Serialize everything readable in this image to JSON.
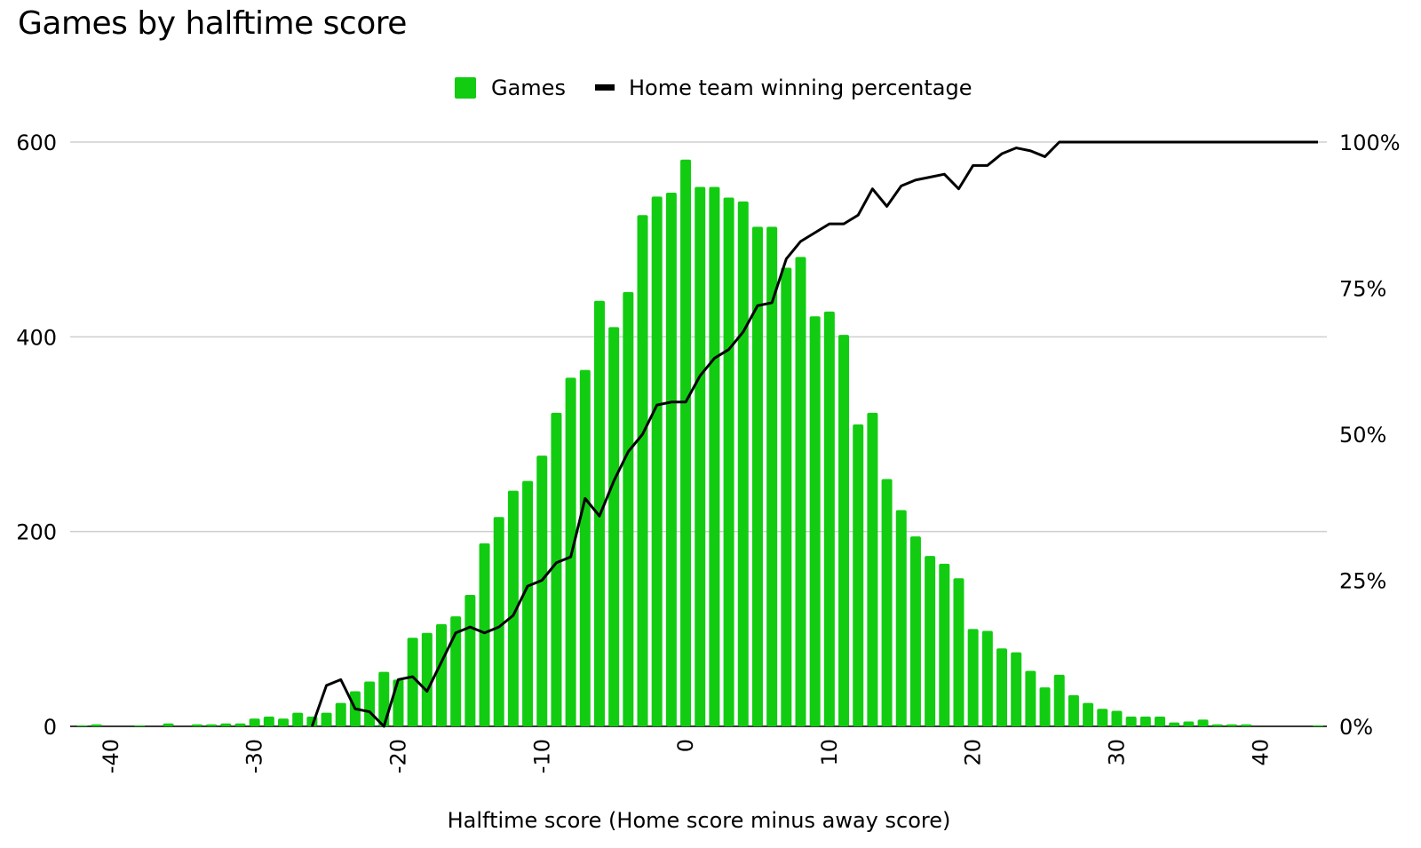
{
  "colors": {
    "bar": "#12cc12",
    "line": "#000000",
    "grid": "#cfcfcf"
  },
  "chart_data": {
    "type": "bar",
    "title": "Games by halftime score",
    "xlabel": "Halftime score (Home score minus away score)",
    "ylabel": "",
    "y2label": "",
    "xlim": [
      -42,
      44
    ],
    "ylim": [
      0,
      600
    ],
    "y2lim": [
      0,
      100
    ],
    "x_ticks": [
      "-40",
      "-30",
      "-20",
      "-10",
      "0",
      "10",
      "20",
      "30",
      "40"
    ],
    "x_tick_values": [
      -40,
      -30,
      -20,
      -10,
      0,
      10,
      20,
      30,
      40
    ],
    "y_ticks": [
      "0",
      "200",
      "400",
      "600"
    ],
    "y_tick_values": [
      0,
      200,
      400,
      600
    ],
    "y2_ticks": [
      "0%",
      "25%",
      "50%",
      "75%",
      "100%"
    ],
    "y2_tick_values": [
      0,
      25,
      50,
      75,
      100
    ],
    "grid": true,
    "legend_position": "top-center",
    "legend": [
      {
        "label": "Games",
        "kind": "bar"
      },
      {
        "label": "Home team winning percentage",
        "kind": "line"
      }
    ],
    "x": [
      -42,
      -41,
      -40,
      -39,
      -38,
      -37,
      -36,
      -35,
      -34,
      -33,
      -32,
      -31,
      -30,
      -29,
      -28,
      -27,
      -26,
      -25,
      -24,
      -23,
      -22,
      -21,
      -20,
      -19,
      -18,
      -17,
      -16,
      -15,
      -14,
      -13,
      -12,
      -11,
      -10,
      -9,
      -8,
      -7,
      -6,
      -5,
      -4,
      -3,
      -2,
      -1,
      0,
      1,
      2,
      3,
      4,
      5,
      6,
      7,
      8,
      9,
      10,
      11,
      12,
      13,
      14,
      15,
      16,
      17,
      18,
      19,
      20,
      21,
      22,
      23,
      24,
      25,
      26,
      27,
      28,
      29,
      30,
      31,
      32,
      33,
      34,
      35,
      36,
      37,
      38,
      39,
      40,
      41,
      42,
      43,
      44
    ],
    "series": [
      {
        "name": "Games",
        "type": "bar",
        "axis": "left",
        "values": [
          1,
          2,
          0,
          0,
          1,
          0,
          3,
          0,
          2,
          2,
          3,
          3,
          8,
          10,
          8,
          14,
          10,
          14,
          24,
          36,
          46,
          56,
          48,
          91,
          96,
          105,
          113,
          135,
          188,
          215,
          242,
          252,
          278,
          322,
          358,
          366,
          437,
          410,
          446,
          525,
          544,
          548,
          582,
          554,
          554,
          543,
          539,
          513,
          513,
          471,
          482,
          421,
          426,
          402,
          310,
          322,
          254,
          222,
          195,
          175,
          167,
          152,
          100,
          98,
          80,
          76,
          57,
          40,
          53,
          32,
          24,
          18,
          16,
          10,
          10,
          10,
          4,
          5,
          7,
          2,
          2,
          2,
          0,
          0,
          0,
          0,
          1
        ]
      },
      {
        "name": "Home team winning percentage",
        "type": "line",
        "axis": "right",
        "x": [
          -26,
          -25,
          -24,
          -23,
          -22,
          -21,
          -20,
          -19,
          -18,
          -17,
          -16,
          -15,
          -14,
          -13,
          -12,
          -11,
          -10,
          -9,
          -8,
          -7,
          -6,
          -5,
          -4,
          -3,
          -2,
          -1,
          0,
          1,
          2,
          3,
          4,
          5,
          6,
          7,
          8,
          9,
          10,
          11,
          12,
          13,
          14,
          15,
          16,
          17,
          18,
          19,
          20,
          21,
          22,
          23,
          24,
          25,
          26,
          27,
          28,
          29,
          30,
          31,
          32,
          33,
          34,
          35,
          36,
          37,
          38,
          39,
          40,
          41,
          42,
          43,
          44
        ],
        "values": [
          0,
          7,
          8,
          3,
          2.5,
          0,
          8,
          8.5,
          6,
          11,
          16,
          17,
          16,
          17,
          19,
          24,
          25,
          28,
          29,
          39,
          36,
          42,
          47,
          50,
          55,
          55.5,
          55.5,
          60,
          63,
          64.5,
          67.5,
          72,
          72.5,
          80,
          83,
          84.5,
          86,
          86,
          87.5,
          92,
          89,
          92.5,
          93.5,
          94,
          94.5,
          92,
          96,
          96,
          98,
          99,
          98.5,
          97.5,
          100,
          100,
          100,
          100,
          100,
          100,
          100,
          100,
          100,
          100,
          100,
          100,
          100,
          100,
          100,
          100,
          100,
          100,
          100
        ]
      }
    ]
  }
}
